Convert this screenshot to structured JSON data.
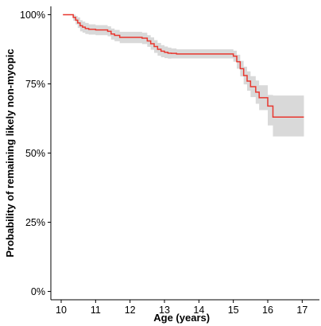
{
  "chart_data": {
    "type": "line",
    "subtype": "kaplan-meier survival curve with confidence band",
    "title": "",
    "xlabel": "Age (years)",
    "ylabel": "Probability of remaining likely non-myopic",
    "xlim": [
      9.7,
      17.5
    ],
    "ylim": [
      -0.03,
      1.03
    ],
    "x_ticks": [
      10,
      11,
      12,
      13,
      14,
      15,
      16,
      17
    ],
    "x_tick_labels": [
      "10",
      "11",
      "12",
      "13",
      "14",
      "15",
      "16",
      "17"
    ],
    "y_ticks": [
      0,
      0.25,
      0.5,
      0.75,
      1.0
    ],
    "y_tick_labels": [
      "0%",
      "25%",
      "50%",
      "75%",
      "100%"
    ],
    "grid": false,
    "legend": "none",
    "colors": {
      "line": "#e8372f",
      "band": "#d9d9d9"
    },
    "series": [
      {
        "step_x": [
          10.05,
          10.35,
          10.42,
          10.48,
          10.55,
          10.62,
          10.7,
          10.8,
          11.0,
          11.35,
          11.45,
          11.55,
          11.7,
          12.35,
          12.5,
          12.6,
          12.7,
          12.8,
          12.9,
          13.0,
          13.1,
          13.2,
          13.35,
          15.0,
          15.1,
          15.2,
          15.3,
          15.4,
          15.5,
          15.65,
          15.75,
          16.0,
          16.15,
          17.05
        ],
        "step_y": [
          1.0,
          0.99,
          0.98,
          0.97,
          0.96,
          0.955,
          0.95,
          0.947,
          0.945,
          0.94,
          0.93,
          0.925,
          0.918,
          0.915,
          0.905,
          0.895,
          0.885,
          0.875,
          0.868,
          0.864,
          0.861,
          0.86,
          0.858,
          0.85,
          0.83,
          0.805,
          0.78,
          0.76,
          0.74,
          0.72,
          0.7,
          0.67,
          0.63,
          0.63
        ],
        "ci_upper": [
          1.0,
          1.0,
          0.995,
          0.99,
          0.98,
          0.975,
          0.97,
          0.965,
          0.962,
          0.958,
          0.95,
          0.945,
          0.938,
          0.935,
          0.926,
          0.918,
          0.908,
          0.898,
          0.89,
          0.885,
          0.881,
          0.878,
          0.875,
          0.87,
          0.855,
          0.833,
          0.812,
          0.795,
          0.778,
          0.762,
          0.745,
          0.71,
          0.708,
          0.708
        ],
        "ci_lower": [
          1.0,
          0.978,
          0.965,
          0.952,
          0.94,
          0.935,
          0.93,
          0.928,
          0.926,
          0.922,
          0.91,
          0.904,
          0.897,
          0.894,
          0.884,
          0.873,
          0.862,
          0.852,
          0.846,
          0.843,
          0.841,
          0.842,
          0.842,
          0.83,
          0.805,
          0.777,
          0.748,
          0.725,
          0.702,
          0.678,
          0.655,
          0.6,
          0.56,
          0.56
        ]
      }
    ]
  }
}
